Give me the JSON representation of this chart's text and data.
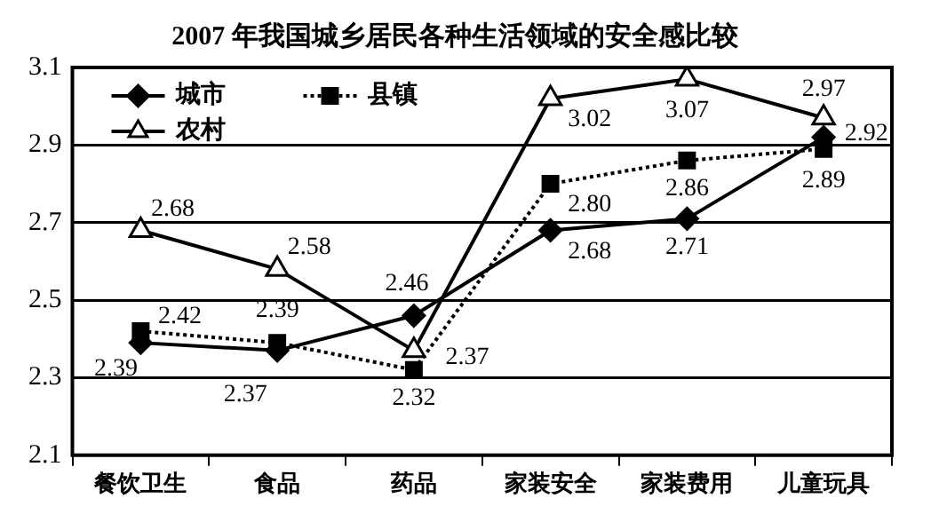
{
  "chart_data": {
    "type": "line",
    "title": "2007 年我国城乡居民各种生活领域的安全感比较",
    "categories": [
      "餐饮卫生",
      "食品",
      "药品",
      "家装安全",
      "家装费用",
      "儿童玩具"
    ],
    "series": [
      {
        "name": "城市",
        "color": "#000000",
        "marker": "diamond",
        "line_style": "solid",
        "values": [
          2.39,
          2.37,
          2.46,
          2.68,
          2.71,
          2.92
        ],
        "value_labels": [
          "2.39",
          "2.37",
          "2.46",
          "2.68",
          "2.71",
          "2.92"
        ]
      },
      {
        "name": "县镇",
        "color": "#000000",
        "marker": "square",
        "line_style": "dotted",
        "values": [
          2.42,
          2.39,
          2.32,
          2.8,
          2.86,
          2.89
        ],
        "value_labels": [
          "2.42",
          "2.39",
          "2.32",
          "2.80",
          "2.86",
          "2.89"
        ]
      },
      {
        "name": "农村",
        "color": "#000000",
        "marker": "triangle",
        "line_style": "solid",
        "values": [
          2.68,
          2.58,
          2.37,
          3.02,
          3.07,
          2.97
        ],
        "value_labels": [
          "2.68",
          "2.58",
          "2.37",
          "3.02",
          "3.07",
          "2.97"
        ]
      }
    ],
    "ylim": [
      2.1,
      3.1
    ],
    "yticks": [
      2.1,
      2.3,
      2.5,
      2.7,
      2.9,
      3.1
    ],
    "grid": "y",
    "legend": "top left"
  }
}
